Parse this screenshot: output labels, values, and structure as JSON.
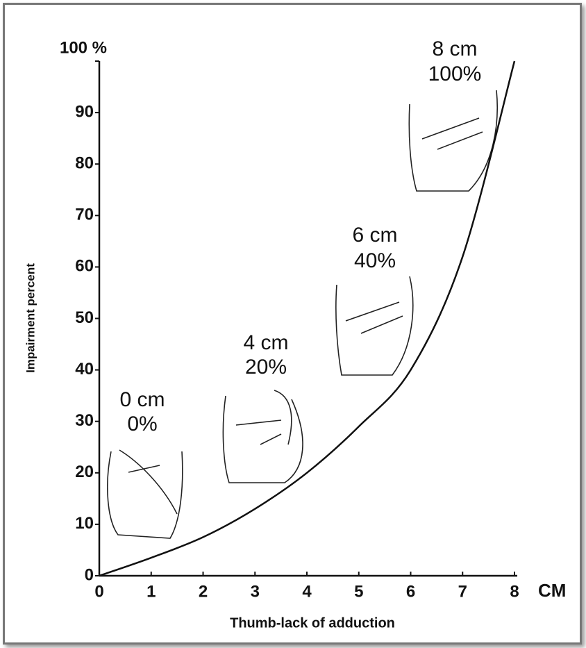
{
  "chart_data": {
    "type": "line",
    "y_label": "Impairment percent",
    "x_label": "Thumb-lack of adduction",
    "x_unit": "CM",
    "x": [
      0,
      1,
      2,
      3,
      4,
      5,
      6,
      7,
      8
    ],
    "series": [
      {
        "color": "#111111",
        "values": [
          0,
          3.5,
          7.5,
          13,
          20,
          29,
          40,
          62,
          100
        ]
      }
    ],
    "xlim": [
      0,
      8
    ],
    "xticks": [
      0,
      1,
      2,
      3,
      4,
      5,
      6,
      7,
      8
    ],
    "ylim": [
      0,
      100
    ],
    "yticks": [
      0,
      10,
      20,
      30,
      40,
      50,
      60,
      70,
      80,
      90,
      {
        "value": 100,
        "label": "100 %"
      }
    ],
    "annotations": [
      [
        "0 cm",
        "0%"
      ],
      [
        "4 cm",
        "20%"
      ],
      [
        "6 cm",
        "40%"
      ],
      [
        "8 cm",
        "100%"
      ]
    ]
  }
}
